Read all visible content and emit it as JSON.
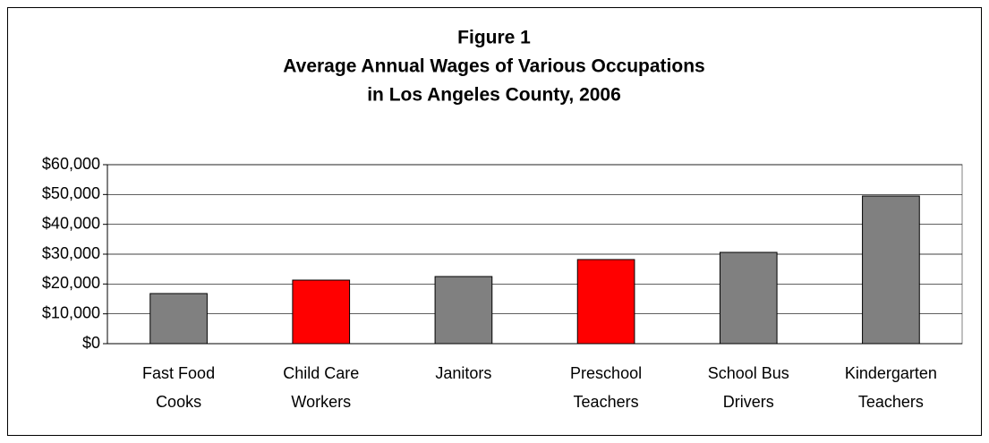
{
  "chart_data": {
    "type": "bar",
    "title": [
      "Figure 1",
      "Average Annual Wages of Various Occupations",
      "in Los Angeles County, 2006"
    ],
    "categories": [
      [
        "Fast Food",
        "Cooks"
      ],
      [
        "Child Care",
        "Workers"
      ],
      [
        "Janitors"
      ],
      [
        "Preschool",
        "Teachers"
      ],
      [
        "School Bus",
        "Drivers"
      ],
      [
        "Kindergarten",
        "Teachers"
      ]
    ],
    "values": [
      16800,
      21300,
      22500,
      28200,
      30600,
      49500
    ],
    "colors": [
      "#808080",
      "#ff0000",
      "#808080",
      "#ff0000",
      "#808080",
      "#808080"
    ],
    "ylim": [
      0,
      60000
    ],
    "yticks": [
      {
        "value": 0,
        "label": "$0"
      },
      {
        "value": 10000,
        "label": "$10,000"
      },
      {
        "value": 20000,
        "label": "$20,000"
      },
      {
        "value": 30000,
        "label": "$30,000"
      },
      {
        "value": 40000,
        "label": "$40,000"
      },
      {
        "value": 50000,
        "label": "$50,000"
      },
      {
        "value": 60000,
        "label": "$60,000"
      }
    ],
    "grid": true
  }
}
